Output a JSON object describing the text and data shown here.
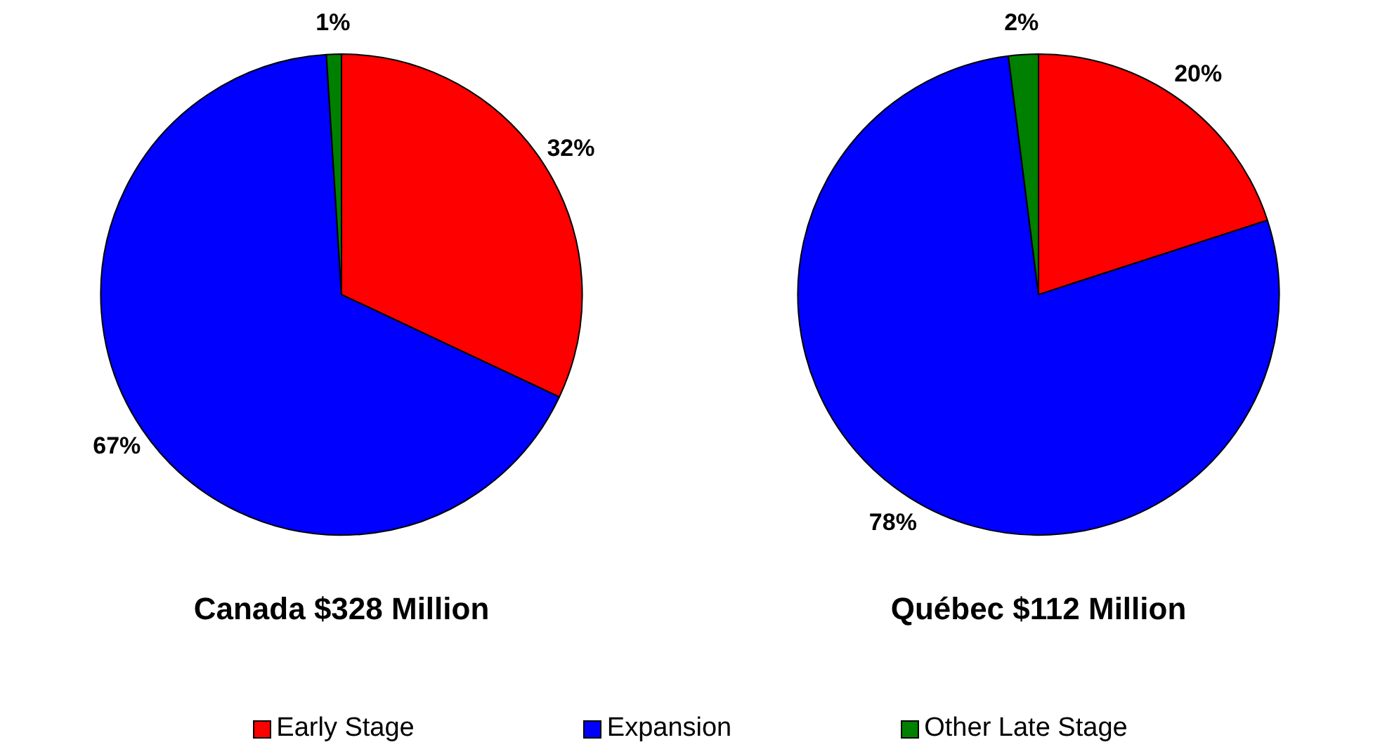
{
  "chart_data": [
    {
      "type": "pie",
      "title": "Canada $328 Million",
      "categories": [
        "Early Stage",
        "Expansion",
        "Other Late Stage"
      ],
      "values": [
        32,
        67,
        1
      ],
      "colors": [
        "#ff0000",
        "#0000ff",
        "#008000"
      ],
      "value_labels": [
        "32%",
        "67%",
        "1%"
      ],
      "legend": "bottom"
    },
    {
      "type": "pie",
      "title": "Québec $112 Million",
      "categories": [
        null,
        null,
        null
      ],
      "values": [
        20,
        78,
        2
      ],
      "colors": [
        "#ff0000",
        "#0000ff",
        "#008000"
      ],
      "value_labels": [
        "20%",
        "78%",
        "2%"
      ]
    }
  ]
}
